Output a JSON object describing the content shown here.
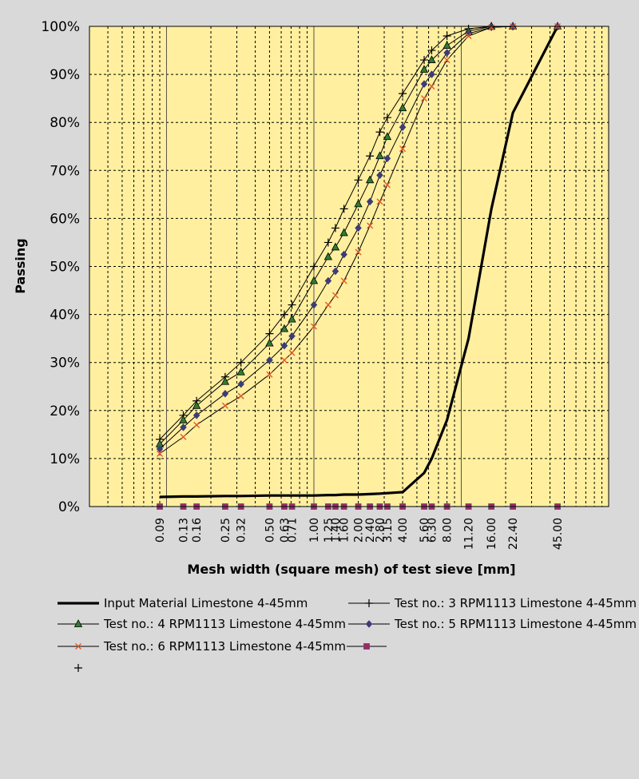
{
  "chart_data": {
    "type": "line",
    "title": "",
    "xlabel": "Mesh width (square mesh) of test sieve [mm]",
    "ylabel": "Passing",
    "x_scale": "log",
    "xlim": [
      0.03,
      100
    ],
    "ylim": [
      0,
      100
    ],
    "y_ticks": [
      "0%",
      "10%",
      "20%",
      "30%",
      "40%",
      "50%",
      "60%",
      "70%",
      "80%",
      "90%",
      "100%"
    ],
    "x_tick_labels": [
      "0.09",
      "0.13",
      "0.16",
      "0.25",
      "0.32",
      "0.50",
      "0.63",
      "0.71",
      "1.00",
      "1.25",
      "1.40",
      "1.60",
      "2.00",
      "2.40",
      "2.80",
      "3.15",
      "4.00",
      "5.60",
      "6.30",
      "8.00",
      "11.20",
      "16.00",
      "22.40",
      "45.00"
    ],
    "x_tick_values": [
      0.09,
      0.13,
      0.16,
      0.25,
      0.32,
      0.5,
      0.63,
      0.71,
      1.0,
      1.25,
      1.4,
      1.6,
      2.0,
      2.4,
      2.8,
      3.15,
      4.0,
      5.6,
      6.3,
      8.0,
      11.2,
      16.0,
      22.4,
      45.0
    ],
    "grid": true,
    "legend_position": "bottom",
    "plot_background": "#ffef9f",
    "series": [
      {
        "name": "Input Material Limestone 4-45mm",
        "marker": "none",
        "color": "#000000",
        "x": [
          0.09,
          0.13,
          0.16,
          0.25,
          0.32,
          0.5,
          0.63,
          0.71,
          1.0,
          1.25,
          1.4,
          1.6,
          2.0,
          2.4,
          2.8,
          3.15,
          4.0,
          5.6,
          6.3,
          8.0,
          11.2,
          16.0,
          22.4,
          45.0
        ],
        "y": [
          2,
          2.1,
          2.1,
          2.2,
          2.2,
          2.3,
          2.3,
          2.3,
          2.3,
          2.4,
          2.4,
          2.5,
          2.5,
          2.6,
          2.7,
          2.8,
          3,
          7,
          10,
          18,
          35,
          62,
          82,
          100
        ]
      },
      {
        "name": "Test no.: 3 RPM1113 Limestone 4-45mm",
        "marker": "plus",
        "color": "#000000",
        "x": [
          0.09,
          0.13,
          0.16,
          0.25,
          0.32,
          0.5,
          0.63,
          0.71,
          1.0,
          1.25,
          1.4,
          1.6,
          2.0,
          2.4,
          2.8,
          3.15,
          4.0,
          5.6,
          6.3,
          8.0,
          11.2,
          16.0,
          22.4,
          45.0
        ],
        "y": [
          14,
          19,
          22,
          27,
          30,
          36,
          40,
          42,
          50,
          55,
          58,
          62,
          68,
          73,
          78,
          81,
          86,
          93,
          95,
          98,
          99.5,
          100,
          100,
          100
        ]
      },
      {
        "name": "Test no.: 4 RPM1113 Limestone 4-45mm",
        "marker": "triangle",
        "color": "#2e7d32",
        "x": [
          0.09,
          0.13,
          0.16,
          0.25,
          0.32,
          0.5,
          0.63,
          0.71,
          1.0,
          1.25,
          1.4,
          1.6,
          2.0,
          2.4,
          2.8,
          3.15,
          4.0,
          5.6,
          6.3,
          8.0,
          11.2,
          16.0,
          22.4,
          45.0
        ],
        "y": [
          13,
          18,
          21,
          26,
          28,
          34,
          37,
          39,
          47,
          52,
          54,
          57,
          63,
          68,
          73,
          77,
          83,
          91,
          93,
          96,
          99,
          100,
          100,
          100
        ]
      },
      {
        "name": "Test no.: 5 RPM1113 Limestone 4-45mm",
        "marker": "diamond",
        "color": "#3c3c78",
        "x": [
          0.09,
          0.13,
          0.16,
          0.25,
          0.32,
          0.5,
          0.63,
          0.71,
          1.0,
          1.25,
          1.4,
          1.6,
          2.0,
          2.4,
          2.8,
          3.15,
          4.0,
          5.6,
          6.3,
          8.0,
          11.2,
          16.0,
          22.4,
          45.0
        ],
        "y": [
          12,
          16.5,
          19,
          23.5,
          25.5,
          30.5,
          33.5,
          35.5,
          42,
          47,
          49,
          52.5,
          58,
          63.5,
          69,
          72.5,
          79,
          88,
          90,
          94.5,
          98.5,
          99.8,
          100,
          100
        ]
      },
      {
        "name": "Test no.: 6 RPM1113 Limestone 4-45mm",
        "marker": "cross",
        "color": "#e05a28",
        "x": [
          0.09,
          0.13,
          0.16,
          0.25,
          0.32,
          0.5,
          0.63,
          0.71,
          1.0,
          1.25,
          1.4,
          1.6,
          2.0,
          2.4,
          2.8,
          3.15,
          4.0,
          5.6,
          6.3,
          8.0,
          11.2,
          16.0,
          22.4,
          45.0
        ],
        "y": [
          11,
          14.5,
          17,
          21,
          23,
          27.5,
          30.5,
          32,
          37.5,
          42,
          44,
          47,
          53,
          58.5,
          63.5,
          67,
          74.5,
          85,
          87.5,
          93,
          98,
          99.8,
          100,
          100
        ]
      },
      {
        "name": "",
        "marker": "square",
        "color": "#9c2a6a",
        "x": [
          0.09,
          0.13,
          0.16,
          0.25,
          0.32,
          0.5,
          0.63,
          0.71,
          1.0,
          1.25,
          1.4,
          1.6,
          2.0,
          2.4,
          2.8,
          3.15,
          4.0,
          5.6,
          6.3,
          8.0,
          11.2,
          16.0,
          22.4,
          45.0
        ],
        "y": [
          0,
          0,
          0,
          0,
          0,
          0,
          0,
          0,
          0,
          0,
          0,
          0,
          0,
          0,
          0,
          0,
          0,
          0,
          0,
          0,
          0,
          0,
          0,
          0
        ]
      }
    ]
  }
}
